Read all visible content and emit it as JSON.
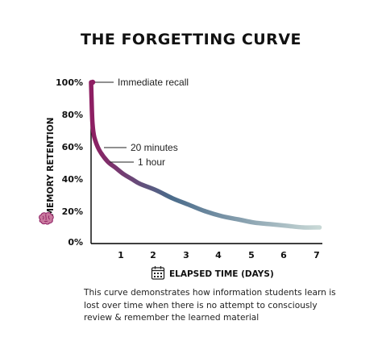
{
  "title": "THE FORGETTING CURVE",
  "caption": "This curve demonstrates how information students learn is lost over time when there is no attempt to consciously review & remember the learned material",
  "chart_data": {
    "type": "line",
    "title": "THE FORGETTING CURVE",
    "xlabel": "ELAPSED TIME (DAYS)",
    "ylabel": "MEMORY RETENTION",
    "xlim": [
      0,
      7
    ],
    "ylim": [
      0,
      100
    ],
    "x_ticks": [
      1,
      2,
      3,
      4,
      5,
      6,
      7
    ],
    "y_ticks": [
      0,
      20,
      40,
      60,
      80,
      100
    ],
    "y_tick_labels": [
      "0%",
      "20%",
      "40%",
      "60%",
      "80%",
      "100%"
    ],
    "grid": false,
    "series": [
      {
        "x": [
          0,
          0.014,
          0.042,
          0.1,
          0.25,
          0.5,
          0.75,
          1,
          1.25,
          1.5,
          2,
          2.5,
          3,
          3.5,
          4,
          4.5,
          5,
          5.5,
          6,
          6.5,
          7
        ],
        "values": [
          100,
          90,
          75,
          66,
          58,
          51,
          47,
          43,
          40,
          37,
          33,
          28,
          24,
          20,
          17,
          15,
          13,
          12,
          11,
          10,
          10
        ]
      }
    ],
    "annotations": [
      {
        "text": "Immediate recall",
        "x": 0,
        "y": 100
      },
      {
        "text": "20 minutes",
        "x": 0.4,
        "y": 58
      },
      {
        "text": "1 hour",
        "x": 0.8,
        "y": 50
      }
    ],
    "gradient_colors": [
      "#8e1e62",
      "#4a6b8a",
      "#c8d8d6"
    ],
    "axis_color": "#000000",
    "icons": [
      "brain-icon",
      "calendar-icon"
    ]
  }
}
